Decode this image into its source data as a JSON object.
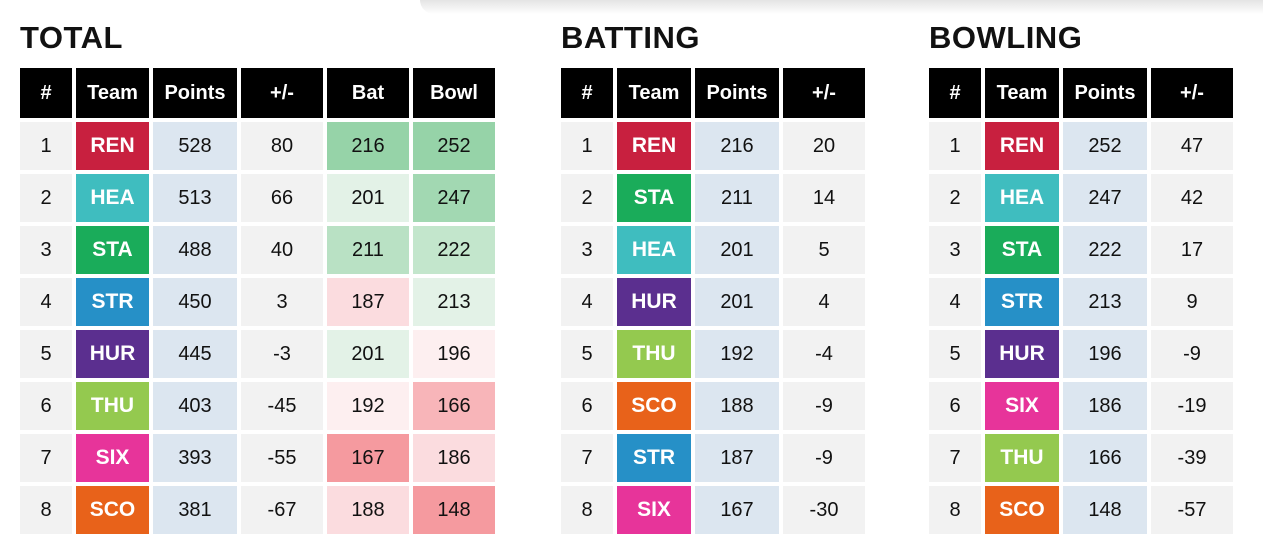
{
  "colors": {
    "REN": "#c8203f",
    "HEA": "#3fbdbf",
    "STA": "#1aac5a",
    "STR": "#2690c7",
    "HUR": "#5b2f8f",
    "THU": "#94c94f",
    "SIX": "#e7349a",
    "SCO": "#e8621a"
  },
  "total": {
    "title": "TOTAL",
    "headers": [
      "#",
      "Team",
      "Points",
      "+/-",
      "Bat",
      "Bowl"
    ],
    "rows": [
      {
        "rank": "1",
        "team": "REN",
        "points": "528",
        "diff": "80",
        "bat": "216",
        "bat_bg": "#96d3a8",
        "bowl": "252",
        "bowl_bg": "#96d3a8"
      },
      {
        "rank": "2",
        "team": "HEA",
        "points": "513",
        "diff": "66",
        "bat": "201",
        "bat_bg": "#e3f2e7",
        "bowl": "247",
        "bowl_bg": "#a2d8b2"
      },
      {
        "rank": "3",
        "team": "STA",
        "points": "488",
        "diff": "40",
        "bat": "211",
        "bat_bg": "#b9e1c4",
        "bowl": "222",
        "bowl_bg": "#c3e6cc"
      },
      {
        "rank": "4",
        "team": "STR",
        "points": "450",
        "diff": "3",
        "bat": "187",
        "bat_bg": "#fbdcdf",
        "bowl": "213",
        "bowl_bg": "#e3f2e7"
      },
      {
        "rank": "5",
        "team": "HUR",
        "points": "445",
        "diff": "-3",
        "bat": "201",
        "bat_bg": "#e3f2e7",
        "bowl": "196",
        "bowl_bg": "#fdeff0"
      },
      {
        "rank": "6",
        "team": "THU",
        "points": "403",
        "diff": "-45",
        "bat": "192",
        "bat_bg": "#fdeff0",
        "bowl": "166",
        "bowl_bg": "#f8b5b9"
      },
      {
        "rank": "7",
        "team": "SIX",
        "points": "393",
        "diff": "-55",
        "bat": "167",
        "bat_bg": "#f59a9f",
        "bowl": "186",
        "bowl_bg": "#fbdcdf"
      },
      {
        "rank": "8",
        "team": "SCO",
        "points": "381",
        "diff": "-67",
        "bat": "188",
        "bat_bg": "#fbdcdf",
        "bowl": "148",
        "bowl_bg": "#f59a9f"
      }
    ]
  },
  "batting": {
    "title": "BATTING",
    "headers": [
      "#",
      "Team",
      "Points",
      "+/-"
    ],
    "rows": [
      {
        "rank": "1",
        "team": "REN",
        "points": "216",
        "diff": "20"
      },
      {
        "rank": "2",
        "team": "STA",
        "points": "211",
        "diff": "14"
      },
      {
        "rank": "3",
        "team": "HEA",
        "points": "201",
        "diff": "5"
      },
      {
        "rank": "4",
        "team": "HUR",
        "points": "201",
        "diff": "4"
      },
      {
        "rank": "5",
        "team": "THU",
        "points": "192",
        "diff": "-4"
      },
      {
        "rank": "6",
        "team": "SCO",
        "points": "188",
        "diff": "-9"
      },
      {
        "rank": "7",
        "team": "STR",
        "points": "187",
        "diff": "-9"
      },
      {
        "rank": "8",
        "team": "SIX",
        "points": "167",
        "diff": "-30"
      }
    ]
  },
  "bowling": {
    "title": "BOWLING",
    "headers": [
      "#",
      "Team",
      "Points",
      "+/-"
    ],
    "rows": [
      {
        "rank": "1",
        "team": "REN",
        "points": "252",
        "diff": "47"
      },
      {
        "rank": "2",
        "team": "HEA",
        "points": "247",
        "diff": "42"
      },
      {
        "rank": "3",
        "team": "STA",
        "points": "222",
        "diff": "17"
      },
      {
        "rank": "4",
        "team": "STR",
        "points": "213",
        "diff": "9"
      },
      {
        "rank": "5",
        "team": "HUR",
        "points": "196",
        "diff": "-9"
      },
      {
        "rank": "6",
        "team": "SIX",
        "points": "186",
        "diff": "-19"
      },
      {
        "rank": "7",
        "team": "THU",
        "points": "166",
        "diff": "-39"
      },
      {
        "rank": "8",
        "team": "SCO",
        "points": "148",
        "diff": "-57"
      }
    ]
  }
}
